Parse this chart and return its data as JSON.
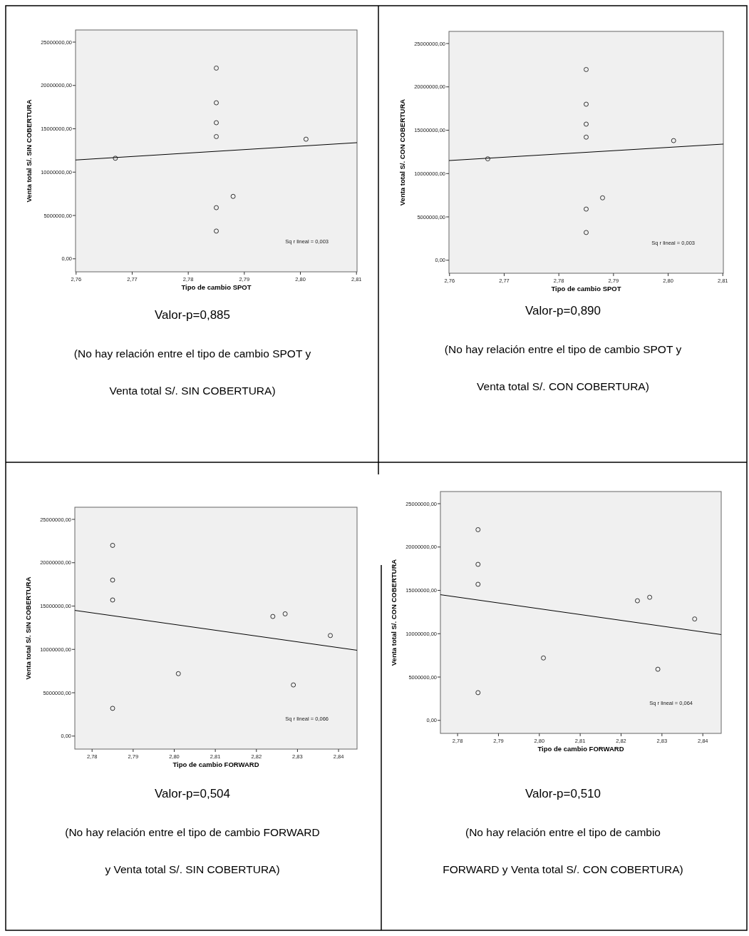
{
  "chart_data": [
    {
      "type": "scatter",
      "xlabel": "Tipo de cambio SPOT",
      "ylabel": "Venta total S/. SIN COBERTURA",
      "grid": false,
      "xlim": [
        2.7599,
        2.8101
      ],
      "ylim": [
        -1500000,
        26400000
      ],
      "xticks": [
        {
          "value": 2.76,
          "label": "2,76"
        },
        {
          "value": 2.77,
          "label": "2,77"
        },
        {
          "value": 2.78,
          "label": "2,78"
        },
        {
          "value": 2.79,
          "label": "2,79"
        },
        {
          "value": 2.8,
          "label": "2,80"
        },
        {
          "value": 2.81,
          "label": "2,81"
        }
      ],
      "yticks": [
        {
          "value": 0,
          "label": "0,00"
        },
        {
          "value": 5000000,
          "label": "5000000,00"
        },
        {
          "value": 10000000,
          "label": "10000000,00"
        },
        {
          "value": 15000000,
          "label": "15000000,00"
        },
        {
          "value": 20000000,
          "label": "20000000,00"
        },
        {
          "value": 25000000,
          "label": "25000000,00"
        }
      ],
      "series": [
        {
          "marker": "circle",
          "color": "#333333",
          "x": [
            2.767,
            2.785,
            2.785,
            2.785,
            2.785,
            2.785,
            2.785,
            2.788,
            2.801
          ],
          "values": [
            11600000,
            22000000,
            18000000,
            15700000,
            14100000,
            5900000,
            3200000,
            7200000,
            13800000
          ]
        },
        {
          "type": "line",
          "color": "#000000",
          "x": [
            2.7599,
            2.8101
          ],
          "values": [
            11400000,
            13400000
          ]
        }
      ],
      "annotations": [
        "Sq r lineal = 0,003",
        "Valor-p=0,885",
        "(No hay relación entre el tipo de cambio SPOT y",
        "Venta total S/. SIN COBERTURA)"
      ]
    },
    {
      "type": "scatter",
      "xlabel": "Tipo de cambio SPOT",
      "ylabel": "Venta total S/. CON COBERTURA",
      "grid": false,
      "xlim": [
        2.7599,
        2.8101
      ],
      "ylim": [
        -1500000,
        26400000
      ],
      "xticks": [
        {
          "value": 2.76,
          "label": "2,76"
        },
        {
          "value": 2.77,
          "label": "2,77"
        },
        {
          "value": 2.78,
          "label": "2,78"
        },
        {
          "value": 2.79,
          "label": "2,79"
        },
        {
          "value": 2.8,
          "label": "2,80"
        },
        {
          "value": 2.81,
          "label": "2,81"
        }
      ],
      "yticks": [
        {
          "value": 0,
          "label": "0,00"
        },
        {
          "value": 5000000,
          "label": "5000000,00"
        },
        {
          "value": 10000000,
          "label": "10000000,00"
        },
        {
          "value": 15000000,
          "label": "15000000,00"
        },
        {
          "value": 20000000,
          "label": "20000000,00"
        },
        {
          "value": 25000000,
          "label": "25000000,00"
        }
      ],
      "series": [
        {
          "marker": "circle",
          "color": "#333333",
          "x": [
            2.767,
            2.785,
            2.785,
            2.785,
            2.785,
            2.785,
            2.785,
            2.788,
            2.801
          ],
          "values": [
            11700000,
            22000000,
            18000000,
            15700000,
            14200000,
            5900000,
            3200000,
            7200000,
            13800000
          ]
        },
        {
          "type": "line",
          "color": "#000000",
          "x": [
            2.7599,
            2.8101
          ],
          "values": [
            11500000,
            13400000
          ]
        }
      ],
      "annotations": [
        "Sq r lineal = 0,003",
        "Valor-p=0,890",
        "(No hay relación entre el tipo de cambio SPOT y",
        "Venta total S/. CON COBERTURA)"
      ]
    },
    {
      "type": "scatter",
      "xlabel": "Tipo de cambio FORWARD",
      "ylabel": "Venta total S/. SIN COBERTURA",
      "grid": false,
      "xlim": [
        2.7758,
        2.8445
      ],
      "ylim": [
        -1500000,
        26400000
      ],
      "xticks": [
        {
          "value": 2.78,
          "label": "2,78"
        },
        {
          "value": 2.79,
          "label": "2,79"
        },
        {
          "value": 2.8,
          "label": "2,80"
        },
        {
          "value": 2.81,
          "label": "2,81"
        },
        {
          "value": 2.82,
          "label": "2,82"
        },
        {
          "value": 2.83,
          "label": "2,83"
        },
        {
          "value": 2.84,
          "label": "2,84"
        }
      ],
      "yticks": [
        {
          "value": 0,
          "label": "0,00"
        },
        {
          "value": 5000000,
          "label": "5000000,00"
        },
        {
          "value": 10000000,
          "label": "10000000,00"
        },
        {
          "value": 15000000,
          "label": "15000000,00"
        },
        {
          "value": 20000000,
          "label": "20000000,00"
        },
        {
          "value": 25000000,
          "label": "25000000,00"
        }
      ],
      "series": [
        {
          "marker": "circle",
          "color": "#333333",
          "x": [
            2.785,
            2.785,
            2.785,
            2.785,
            2.801,
            2.824,
            2.827,
            2.829,
            2.838
          ],
          "values": [
            22000000,
            18000000,
            15700000,
            3200000,
            7200000,
            13800000,
            14100000,
            5900000,
            11600000
          ]
        },
        {
          "type": "line",
          "color": "#000000",
          "x": [
            2.7758,
            2.8445
          ],
          "values": [
            14500000,
            9900000
          ]
        }
      ],
      "annotations": [
        "Sq r lineal = 0,066",
        "Valor-p=0,504",
        "(No hay relación entre el tipo de cambio FORWARD",
        "y Venta total S/. SIN COBERTURA)"
      ]
    },
    {
      "type": "scatter",
      "xlabel": "Tipo de cambio FORWARD",
      "ylabel": "Venta total S/. CON COBERTURA",
      "grid": false,
      "xlim": [
        2.7758,
        2.8445
      ],
      "ylim": [
        -1500000,
        26400000
      ],
      "xticks": [
        {
          "value": 2.78,
          "label": "2,78"
        },
        {
          "value": 2.79,
          "label": "2,79"
        },
        {
          "value": 2.8,
          "label": "2,80"
        },
        {
          "value": 2.81,
          "label": "2,81"
        },
        {
          "value": 2.82,
          "label": "2,82"
        },
        {
          "value": 2.83,
          "label": "2,83"
        },
        {
          "value": 2.84,
          "label": "2,84"
        }
      ],
      "yticks": [
        {
          "value": 0,
          "label": "0,00"
        },
        {
          "value": 5000000,
          "label": "5000000,00"
        },
        {
          "value": 10000000,
          "label": "10000000,00"
        },
        {
          "value": 15000000,
          "label": "15000000,00"
        },
        {
          "value": 20000000,
          "label": "20000000,00"
        },
        {
          "value": 25000000,
          "label": "25000000,00"
        }
      ],
      "series": [
        {
          "marker": "circle",
          "color": "#333333",
          "x": [
            2.785,
            2.785,
            2.785,
            2.785,
            2.801,
            2.824,
            2.827,
            2.829,
            2.838
          ],
          "values": [
            22000000,
            18000000,
            15700000,
            3200000,
            7200000,
            13800000,
            14200000,
            5900000,
            11700000
          ]
        },
        {
          "type": "line",
          "color": "#000000",
          "x": [
            2.7758,
            2.8445
          ],
          "values": [
            14500000,
            9900000
          ]
        }
      ],
      "annotations": [
        "Sq r lineal = 0,064",
        "Valor-p=0,510",
        "(No hay relación entre el tipo de cambio",
        "FORWARD y Venta total S/. CON COBERTURA)"
      ]
    }
  ]
}
